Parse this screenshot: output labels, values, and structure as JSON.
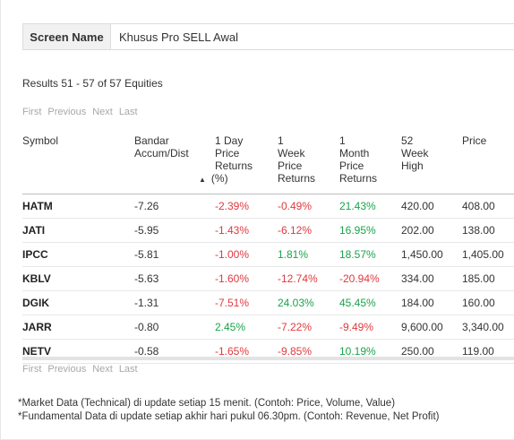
{
  "screen": {
    "label": "Screen Name",
    "value": "Khusus Pro SELL Awal"
  },
  "results_text": "Results 51 - 57 of 57 Equities",
  "pager": {
    "first": "First",
    "previous": "Previous",
    "next": "Next",
    "last": "Last"
  },
  "columns": [
    {
      "lines": [
        "Symbol"
      ]
    },
    {
      "lines": [
        "Bandar",
        "Accum/Dist"
      ]
    },
    {
      "lines": [
        "1 Day",
        "Price",
        "Returns",
        "(%)"
      ],
      "sort_icon": "sort-up-icon"
    },
    {
      "lines": [
        "1",
        "Week",
        "Price",
        "Returns"
      ]
    },
    {
      "lines": [
        "1",
        "Month",
        "Price",
        "Returns"
      ]
    },
    {
      "lines": [
        "52",
        "Week",
        "High"
      ]
    },
    {
      "lines": [
        "Price"
      ]
    }
  ],
  "rows": [
    {
      "symbol": "HATM",
      "bandar": "-7.26",
      "day": "-2.39%",
      "week": "-0.49%",
      "month": "21.43%",
      "high52": "420.00",
      "price": "408.00"
    },
    {
      "symbol": "JATI",
      "bandar": "-5.95",
      "day": "-1.43%",
      "week": "-6.12%",
      "month": "16.95%",
      "high52": "202.00",
      "price": "138.00"
    },
    {
      "symbol": "IPCC",
      "bandar": "-5.81",
      "day": "-1.00%",
      "week": "1.81%",
      "month": "18.57%",
      "high52": "1,450.00",
      "price": "1,405.00"
    },
    {
      "symbol": "KBLV",
      "bandar": "-5.63",
      "day": "-1.60%",
      "week": "-12.74%",
      "month": "-20.94%",
      "high52": "334.00",
      "price": "185.00"
    },
    {
      "symbol": "DGIK",
      "bandar": "-1.31",
      "day": "-7.51%",
      "week": "24.03%",
      "month": "45.45%",
      "high52": "184.00",
      "price": "160.00"
    },
    {
      "symbol": "JARR",
      "bandar": "-0.80",
      "day": "2.45%",
      "week": "-7.22%",
      "month": "-9.49%",
      "high52": "9,600.00",
      "price": "3,340.00"
    },
    {
      "symbol": "NETV",
      "bandar": "-0.58",
      "day": "-1.65%",
      "week": "-9.85%",
      "month": "10.19%",
      "high52": "250.00",
      "price": "119.00"
    }
  ],
  "colors": {
    "negative": "#e0393e",
    "positive": "#1aa34a"
  },
  "notes": [
    "*Market Data (Technical) di update setiap 15 menit. (Contoh: Price, Volume, Value)",
    "*Fundamental Data di update setiap akhir hari pukul 06.30pm. (Contoh: Revenue, Net Profit)"
  ]
}
